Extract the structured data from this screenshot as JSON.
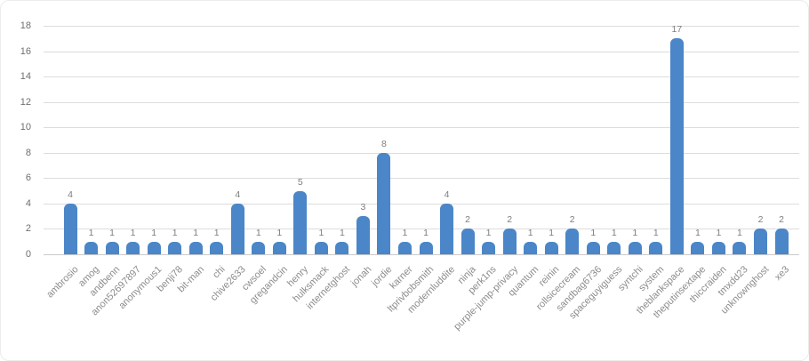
{
  "chart_data": {
    "type": "bar",
    "title": "",
    "xlabel": "",
    "ylabel": "",
    "categories": [
      "ambrosio",
      "amog",
      "andbenn",
      "anon52697897",
      "anonymous1",
      "benji78",
      "bit-man",
      "chi",
      "chive2633",
      "cwsoel",
      "gregandcin",
      "henry",
      "hulksmack",
      "internetghost",
      "jonah",
      "jordie",
      "karner",
      "ltprivbobsmith",
      "modernluddite",
      "ninja",
      "perk1ns",
      "purple-jump-privacy",
      "quantum",
      "reinin",
      "rollsicecream",
      "sandbag6736",
      "spaceguyiguess",
      "syntchi",
      "system",
      "theblankspace",
      "theputinsextape",
      "thiccraiden",
      "tmxdd23",
      "unknownghost",
      "xe3"
    ],
    "values": [
      4,
      1,
      1,
      1,
      1,
      1,
      1,
      1,
      4,
      1,
      1,
      5,
      1,
      1,
      3,
      8,
      1,
      1,
      4,
      2,
      1,
      2,
      1,
      1,
      2,
      1,
      1,
      1,
      1,
      17,
      1,
      1,
      1,
      2,
      2
    ],
    "ylim": [
      0,
      18
    ],
    "yticks": [
      0,
      2,
      4,
      6,
      8,
      10,
      12,
      14,
      16,
      18
    ],
    "grid": true,
    "legend": false,
    "data_labels": true,
    "x_label_rotation_deg": -45
  },
  "colors": {
    "bar": "#4A86C8",
    "gridline": "#DCDCDC",
    "baseline": "#C9C9C9",
    "ytick_label": "#6F6F6F",
    "data_label": "#7E7E7E",
    "category_label": "#8C8C8C",
    "card_border": "#ECECEC",
    "background": "#FFFFFF"
  }
}
